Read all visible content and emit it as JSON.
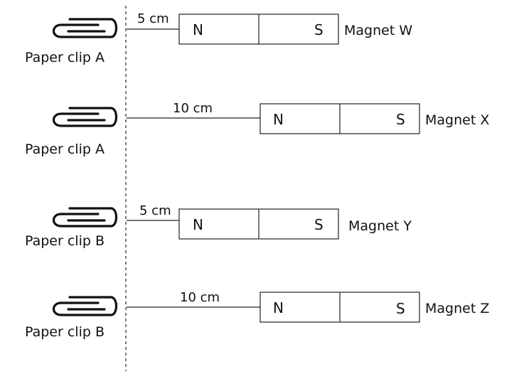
{
  "rows": [
    {
      "clip_label": "Paper clip A",
      "distance_label": "5 cm",
      "north_label": "N",
      "south_label": "S",
      "magnet_label": "Magnet W"
    },
    {
      "clip_label": "Paper clip A",
      "distance_label": "10 cm",
      "north_label": "N",
      "south_label": "S",
      "magnet_label": "Magnet X"
    },
    {
      "clip_label": "Paper clip B",
      "distance_label": "5 cm",
      "north_label": "N",
      "south_label": "S",
      "magnet_label": "Magnet Y"
    },
    {
      "clip_label": "Paper clip B",
      "distance_label": "10 cm",
      "north_label": "N",
      "south_label": "S",
      "magnet_label": "Magnet Z"
    }
  ]
}
